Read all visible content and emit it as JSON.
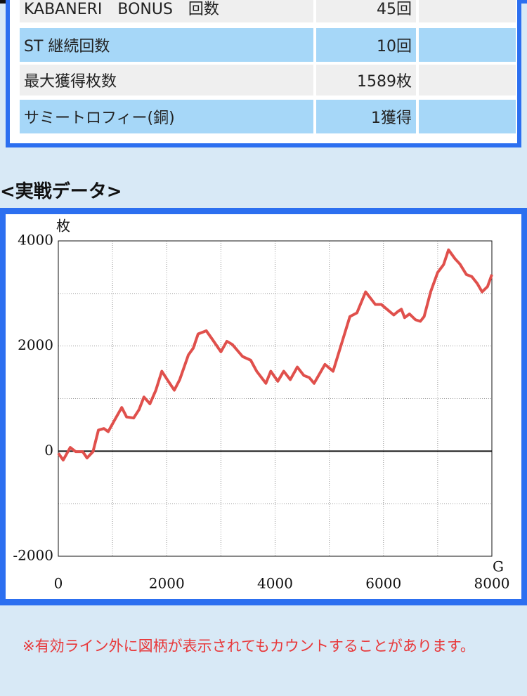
{
  "table": {
    "rows": [
      [
        "KABANERI　BONUS　回数",
        "45回"
      ],
      [
        "ST 継続回数",
        "10回"
      ],
      [
        "最大獲得枚数",
        "1589枚"
      ],
      [
        "サミートロフィー(銅)",
        "1獲得"
      ]
    ]
  },
  "section_title": "<実戦データ>",
  "chart_data": {
    "type": "line",
    "y_label": "枚",
    "x_label": "G",
    "x": [
      0,
      90,
      220,
      320,
      450,
      530,
      640,
      740,
      840,
      920,
      1060,
      1170,
      1260,
      1390,
      1490,
      1580,
      1690,
      1800,
      1910,
      2010,
      2140,
      2240,
      2400,
      2490,
      2580,
      2730,
      2840,
      3000,
      3110,
      3210,
      3400,
      3550,
      3660,
      3830,
      3920,
      4050,
      4160,
      4280,
      4410,
      4530,
      4630,
      4720,
      4920,
      5070,
      5240,
      5380,
      5510,
      5670,
      5850,
      5960,
      6190,
      6270,
      6330,
      6390,
      6480,
      6590,
      6680,
      6750,
      6870,
      7000,
      7110,
      7200,
      7320,
      7410,
      7530,
      7630,
      7730,
      7820,
      7920,
      8000
    ],
    "series": [
      {
        "color": "#e0504c",
        "values": [
          -40,
          -170,
          70,
          -10,
          -10,
          -130,
          -10,
          400,
          430,
          370,
          630,
          830,
          650,
          630,
          790,
          1030,
          900,
          1160,
          1520,
          1360,
          1160,
          1360,
          1830,
          1960,
          2230,
          2290,
          2130,
          1890,
          2090,
          2030,
          1800,
          1730,
          1520,
          1290,
          1520,
          1330,
          1520,
          1360,
          1600,
          1440,
          1400,
          1290,
          1650,
          1520,
          2090,
          2560,
          2630,
          3030,
          2790,
          2790,
          2590,
          2660,
          2700,
          2540,
          2610,
          2500,
          2470,
          2560,
          3030,
          3400,
          3550,
          3830,
          3660,
          3560,
          3360,
          3320,
          3190,
          3030,
          3130,
          3360
        ]
      }
    ],
    "xlim": [
      0,
      8000
    ],
    "xticks": [
      0,
      2000,
      4000,
      6000,
      8000
    ],
    "ylim": [
      -2000,
      4000
    ],
    "yticks": [
      -2000,
      0,
      2000,
      4000
    ],
    "minor_xticks": [
      1000,
      3000,
      5000,
      7000
    ],
    "minor_yticks": [
      -1000,
      1000,
      3000
    ],
    "grid": true
  },
  "note": "※有効ライン外に図柄が表示されてもカウントすることがあります。"
}
